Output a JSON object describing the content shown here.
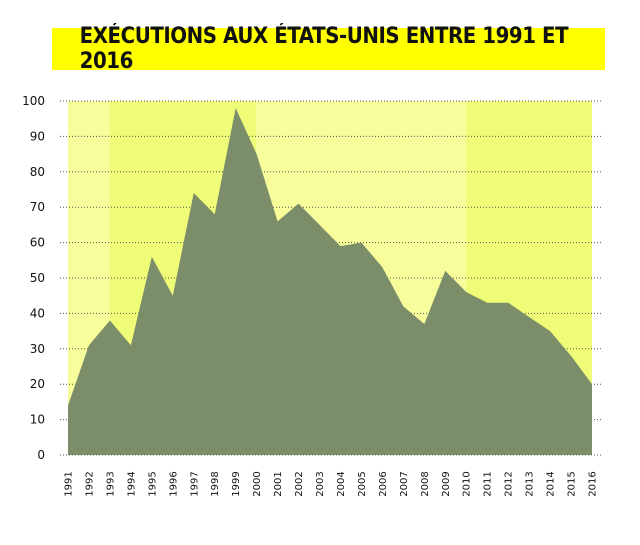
{
  "chart_data": {
    "type": "area",
    "title": "EXÉCUTIONS AUX ÉTATS-UNIS ENTRE 1991 ET 2016",
    "xlabel": "",
    "ylabel": "",
    "x": [
      "1991",
      "1992",
      "1993",
      "1994",
      "1995",
      "1996",
      "1997",
      "1998",
      "1999",
      "2000",
      "2001",
      "2002",
      "2003",
      "2004",
      "2005",
      "2006",
      "2007",
      "2008",
      "2009",
      "2010",
      "2011",
      "2012",
      "2013",
      "2014",
      "2015",
      "2016"
    ],
    "values": [
      14,
      31,
      38,
      31,
      56,
      45,
      74,
      68,
      98,
      85,
      66,
      71,
      65,
      59,
      60,
      53,
      42,
      37,
      52,
      46,
      43,
      43,
      39,
      35,
      28,
      20
    ],
    "ylim": [
      0,
      100
    ],
    "yticks": [
      0,
      10,
      20,
      30,
      40,
      50,
      60,
      70,
      80,
      90,
      100
    ],
    "grid": "horizontal dotted",
    "background_bands": [
      {
        "from": "1991",
        "to": "1993",
        "color": "#f6fd9a"
      },
      {
        "from": "1993",
        "to": "2000",
        "color": "#eefc78"
      },
      {
        "from": "2000",
        "to": "2010",
        "color": "#f6fd9a"
      },
      {
        "from": "2010",
        "to": "2016",
        "color": "#eefc78"
      }
    ],
    "colors": {
      "area": "#7c8d6a",
      "title_background": "#ffff00",
      "title_text": "#111111",
      "grid": "#555555"
    }
  }
}
